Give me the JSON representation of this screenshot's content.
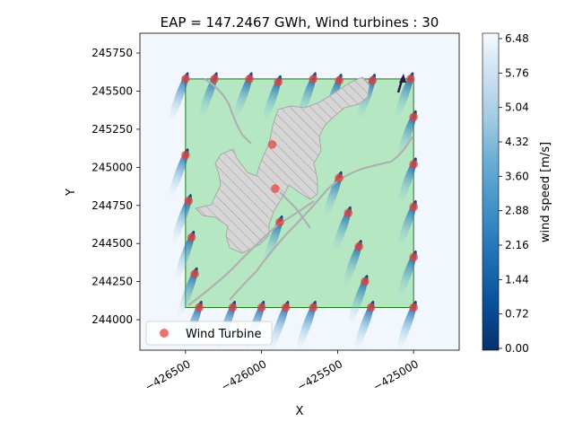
{
  "chart_data": {
    "type": "scatter",
    "title": "EAP = 147.2467 GWh, Wind turbines : 30",
    "xlabel": "X",
    "ylabel": "Y",
    "xlim": [
      -426800,
      -424700
    ],
    "ylim": [
      243800,
      245880
    ],
    "x_ticks": [
      -426500,
      -426000,
      -425500,
      -425000
    ],
    "x_tick_labels": [
      "−426500",
      "−426000",
      "−425500",
      "−425000"
    ],
    "y_ticks": [
      244000,
      244250,
      244500,
      244750,
      245000,
      245250,
      245500,
      245750
    ],
    "y_tick_labels": [
      "244000",
      "244250",
      "244500",
      "244750",
      "245000",
      "245250",
      "245500",
      "245750"
    ],
    "site_boundary": {
      "x": [
        -426500,
        -425000
      ],
      "y": [
        244080,
        245580
      ]
    },
    "legend": {
      "position": "lower-left",
      "entries": [
        "Wind Turbine"
      ]
    },
    "series": [
      {
        "name": "Wind Turbine",
        "color": "#e8413a",
        "points": [
          [
            -426500,
            245580
          ],
          [
            -426310,
            245580
          ],
          [
            -426080,
            245580
          ],
          [
            -425890,
            245560
          ],
          [
            -425660,
            245580
          ],
          [
            -425490,
            245570
          ],
          [
            -425270,
            245570
          ],
          [
            -425020,
            245580
          ],
          [
            -426500,
            245080
          ],
          [
            -426480,
            244780
          ],
          [
            -426460,
            244540
          ],
          [
            -426440,
            244300
          ],
          [
            -426410,
            244080
          ],
          [
            -426190,
            244080
          ],
          [
            -426000,
            244080
          ],
          [
            -425840,
            244080
          ],
          [
            -425660,
            244080
          ],
          [
            -425280,
            244080
          ],
          [
            -425000,
            244080
          ],
          [
            -425930,
            245150
          ],
          [
            -425910,
            244860
          ],
          [
            -425880,
            244640
          ],
          [
            -425490,
            244930
          ],
          [
            -425430,
            244700
          ],
          [
            -425360,
            244480
          ],
          [
            -425320,
            244250
          ],
          [
            -425000,
            245330
          ],
          [
            -425000,
            245020
          ],
          [
            -425000,
            244740
          ],
          [
            -425000,
            244410
          ]
        ]
      }
    ],
    "colorbar": {
      "label": "wind speed [m/s]",
      "min": 0,
      "max": 6.48,
      "ticks": [
        "0.00",
        "0.72",
        "1.44",
        "2.16",
        "2.88",
        "3.60",
        "4.32",
        "5.04",
        "5.76",
        "6.48"
      ],
      "colormap": "Blues_r"
    },
    "grid": false,
    "colors": {
      "site_fill": "#b5e8c2",
      "site_border": "#1a7a1a",
      "exclusion_fill": "#d6d6d6",
      "wake_dark": "#08306b",
      "background": "#f2f7fd",
      "wind_arrow": "#2a1a4a"
    }
  }
}
